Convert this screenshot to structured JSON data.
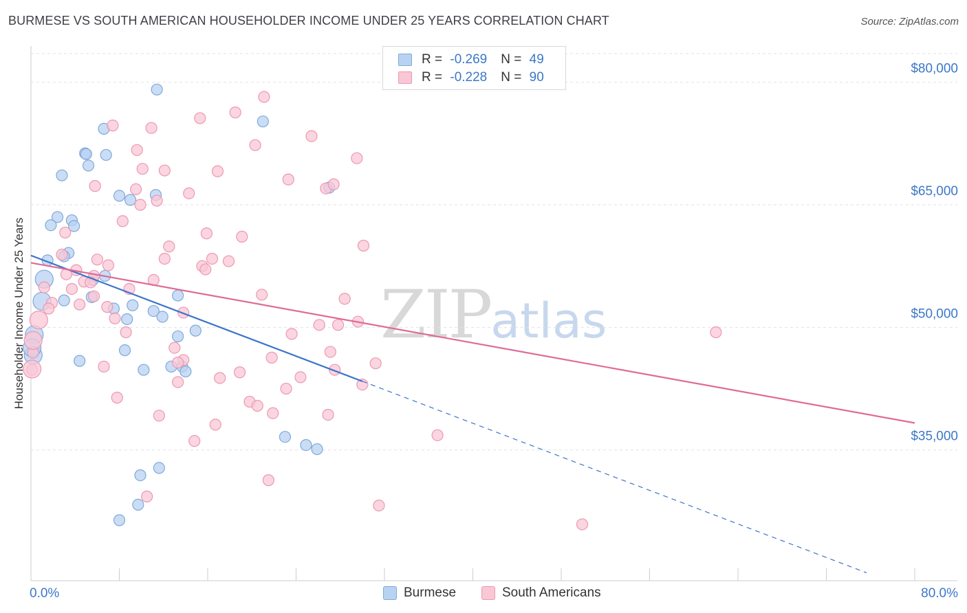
{
  "title": "BURMESE VS SOUTH AMERICAN HOUSEHOLDER INCOME UNDER 25 YEARS CORRELATION CHART",
  "source": "Source: ZipAtlas.com",
  "legend": {
    "r_label": "R = ",
    "n_label": "N = ",
    "rows": [
      {
        "name": "Burmese",
        "r": "-0.269",
        "n": "49"
      },
      {
        "name": "South Americans",
        "r": "-0.228",
        "n": "90"
      }
    ]
  },
  "watermark": {
    "zip": "ZIP",
    "atlas": "atlas"
  },
  "colors": {
    "burmese_fill": "#b8d2f2",
    "burmese_stroke": "#7fa8da",
    "burmese_line": "#3a74c9",
    "sa_fill": "#f9c7d6",
    "sa_stroke": "#ec98b2",
    "sa_line": "#e06a95",
    "tick": "#3b78c7"
  },
  "chart_data": {
    "type": "scatter",
    "title": "BURMESE VS SOUTH AMERICAN HOUSEHOLDER INCOME UNDER 25 YEARS CORRELATION CHART",
    "xlabel": "",
    "ylabel": "Householder Income Under 25 Years",
    "xlim": [
      0,
      80
    ],
    "ylim": [
      19000,
      83500
    ],
    "x_tick_labels": [
      "0.0%",
      "80.0%"
    ],
    "y_ticks": [
      35000,
      50000,
      65000,
      80000
    ],
    "y_tick_labels": [
      "$35,000",
      "$50,000",
      "$65,000",
      "$80,000"
    ],
    "grid": "horizontal dashed",
    "legend_position": "top-center",
    "series": [
      {
        "name": "Burmese",
        "points": [
          [
            11.4,
            79.1
          ],
          [
            21.0,
            75.2
          ],
          [
            6.6,
            74.3
          ],
          [
            4.9,
            71.3
          ],
          [
            5.0,
            71.2
          ],
          [
            6.8,
            71.1
          ],
          [
            5.2,
            69.8
          ],
          [
            2.8,
            68.6
          ],
          [
            8.0,
            66.1
          ],
          [
            11.3,
            66.2
          ],
          [
            9.0,
            65.6
          ],
          [
            27.0,
            67.1
          ],
          [
            2.4,
            63.5
          ],
          [
            3.7,
            63.1
          ],
          [
            1.8,
            62.5
          ],
          [
            3.9,
            62.4
          ],
          [
            3.4,
            59.1
          ],
          [
            3.0,
            58.7
          ],
          [
            1.5,
            58.2
          ],
          [
            6.7,
            56.3
          ],
          [
            1.2,
            55.9
          ],
          [
            5.6,
            55.8
          ],
          [
            13.3,
            53.9
          ],
          [
            5.5,
            53.7
          ],
          [
            3.0,
            53.3
          ],
          [
            1.0,
            53.2
          ],
          [
            9.2,
            52.7
          ],
          [
            7.5,
            52.3
          ],
          [
            11.1,
            52.0
          ],
          [
            11.9,
            51.3
          ],
          [
            8.7,
            51.0
          ],
          [
            0.3,
            49.1
          ],
          [
            14.9,
            49.6
          ],
          [
            13.3,
            48.9
          ],
          [
            8.5,
            47.2
          ],
          [
            0.2,
            46.6
          ],
          [
            4.4,
            45.9
          ],
          [
            12.7,
            45.2
          ],
          [
            13.7,
            45.2
          ],
          [
            10.2,
            44.8
          ],
          [
            14.0,
            44.6
          ],
          [
            23.0,
            36.6
          ],
          [
            24.9,
            35.6
          ],
          [
            25.9,
            35.1
          ],
          [
            11.6,
            32.8
          ],
          [
            9.9,
            31.9
          ],
          [
            9.7,
            28.3
          ],
          [
            8.0,
            26.4
          ],
          [
            0.1,
            47.5
          ]
        ]
      },
      {
        "name": "South Americans",
        "points": [
          [
            21.1,
            78.2
          ],
          [
            18.5,
            76.3
          ],
          [
            15.3,
            75.6
          ],
          [
            7.4,
            74.7
          ],
          [
            10.9,
            74.4
          ],
          [
            25.4,
            73.4
          ],
          [
            20.3,
            72.3
          ],
          [
            9.6,
            71.7
          ],
          [
            29.5,
            70.7
          ],
          [
            10.1,
            69.4
          ],
          [
            12.1,
            69.2
          ],
          [
            16.9,
            69.1
          ],
          [
            23.3,
            68.1
          ],
          [
            5.8,
            67.3
          ],
          [
            26.7,
            67.0
          ],
          [
            27.4,
            67.5
          ],
          [
            9.5,
            66.9
          ],
          [
            14.3,
            66.4
          ],
          [
            11.4,
            65.5
          ],
          [
            9.9,
            65.0
          ],
          [
            8.3,
            63.0
          ],
          [
            15.9,
            61.5
          ],
          [
            19.1,
            61.1
          ],
          [
            30.1,
            60.0
          ],
          [
            3.1,
            61.6
          ],
          [
            12.5,
            59.9
          ],
          [
            2.8,
            58.9
          ],
          [
            6.0,
            58.3
          ],
          [
            12.1,
            58.4
          ],
          [
            16.4,
            58.4
          ],
          [
            17.9,
            58.1
          ],
          [
            7.0,
            57.6
          ],
          [
            15.5,
            57.5
          ],
          [
            15.8,
            57.1
          ],
          [
            4.1,
            57.0
          ],
          [
            3.2,
            56.5
          ],
          [
            5.7,
            56.3
          ],
          [
            11.1,
            55.8
          ],
          [
            4.8,
            55.6
          ],
          [
            5.4,
            55.5
          ],
          [
            1.2,
            54.9
          ],
          [
            3.7,
            54.7
          ],
          [
            8.9,
            54.7
          ],
          [
            5.7,
            53.8
          ],
          [
            20.9,
            54.0
          ],
          [
            28.4,
            53.5
          ],
          [
            4.4,
            52.8
          ],
          [
            1.9,
            53.0
          ],
          [
            1.6,
            52.3
          ],
          [
            6.9,
            52.5
          ],
          [
            13.8,
            51.8
          ],
          [
            0.7,
            50.9
          ],
          [
            29.6,
            50.7
          ],
          [
            26.1,
            50.3
          ],
          [
            27.8,
            50.3
          ],
          [
            7.6,
            51.1
          ],
          [
            8.6,
            49.4
          ],
          [
            23.6,
            49.2
          ],
          [
            62.0,
            49.4
          ],
          [
            27.1,
            47.0
          ],
          [
            13.0,
            47.5
          ],
          [
            0.2,
            46.9
          ],
          [
            21.8,
            46.3
          ],
          [
            13.8,
            46.0
          ],
          [
            31.2,
            45.6
          ],
          [
            13.3,
            45.7
          ],
          [
            6.6,
            45.2
          ],
          [
            18.9,
            44.5
          ],
          [
            27.5,
            44.8
          ],
          [
            0.1,
            44.8
          ],
          [
            24.4,
            43.9
          ],
          [
            17.1,
            43.8
          ],
          [
            13.3,
            43.3
          ],
          [
            30.0,
            43.0
          ],
          [
            23.1,
            42.5
          ],
          [
            7.8,
            41.4
          ],
          [
            19.8,
            40.9
          ],
          [
            20.5,
            40.4
          ],
          [
            21.9,
            39.5
          ],
          [
            26.9,
            39.3
          ],
          [
            11.6,
            39.2
          ],
          [
            16.7,
            38.1
          ],
          [
            36.8,
            36.8
          ],
          [
            14.8,
            36.1
          ],
          [
            21.5,
            31.3
          ],
          [
            10.5,
            29.3
          ],
          [
            31.5,
            28.2
          ],
          [
            49.9,
            25.9
          ],
          [
            0.1,
            44.9
          ],
          [
            0.2,
            48.4
          ]
        ]
      }
    ],
    "trend_lines": [
      {
        "name": "Burmese",
        "x": [
          0,
          30
        ],
        "y": [
          58.8,
          43.4
        ],
        "extended_to": [
          80,
          17.7
        ]
      },
      {
        "name": "South Americans",
        "x": [
          0,
          80
        ],
        "y": [
          57.9,
          38.3
        ]
      }
    ],
    "y_unit_note": "y values in thousands of dollars"
  }
}
